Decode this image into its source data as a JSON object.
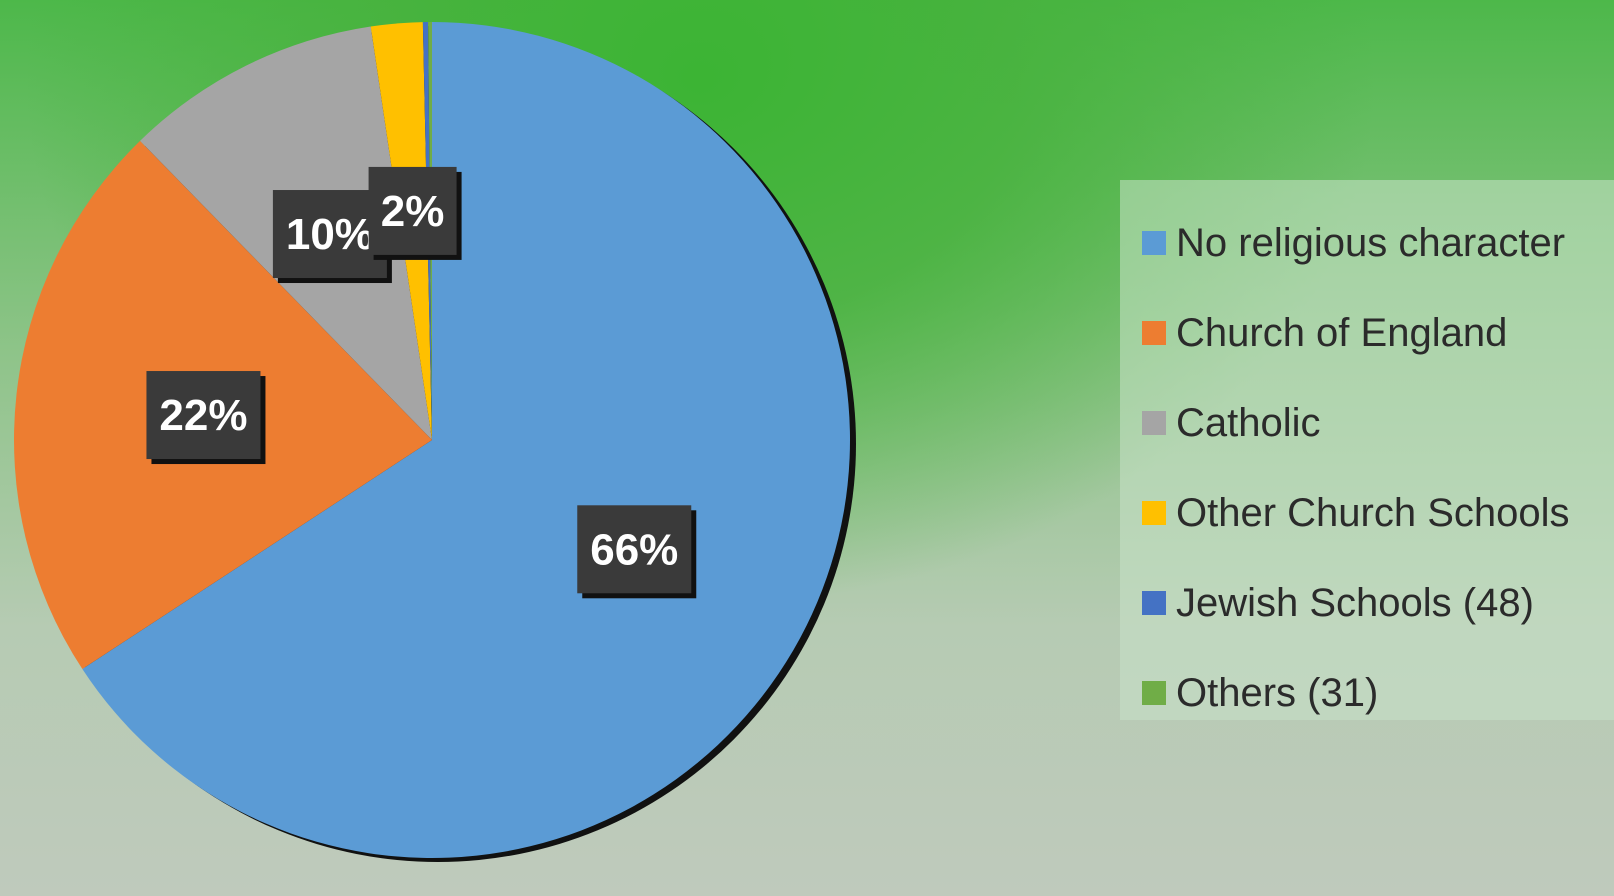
{
  "chart_data": {
    "type": "pie",
    "title": "",
    "labels": [
      "No religious character",
      "Church of England",
      "Catholic",
      "Other Church Schools",
      "Jewish Schools (48)",
      "Others (31)"
    ],
    "values": [
      66,
      22,
      10,
      2,
      0.2,
      0.15
    ],
    "data_labels": [
      "66%",
      "22%",
      "10%",
      "2%",
      "",
      ""
    ],
    "colors": [
      "#5b9bd5",
      "#ed7d31",
      "#a5a5a5",
      "#ffc000",
      "#4472c4",
      "#70ad47"
    ],
    "legend_position": "right",
    "start_angle_deg": 0,
    "direction": "clockwise"
  }
}
